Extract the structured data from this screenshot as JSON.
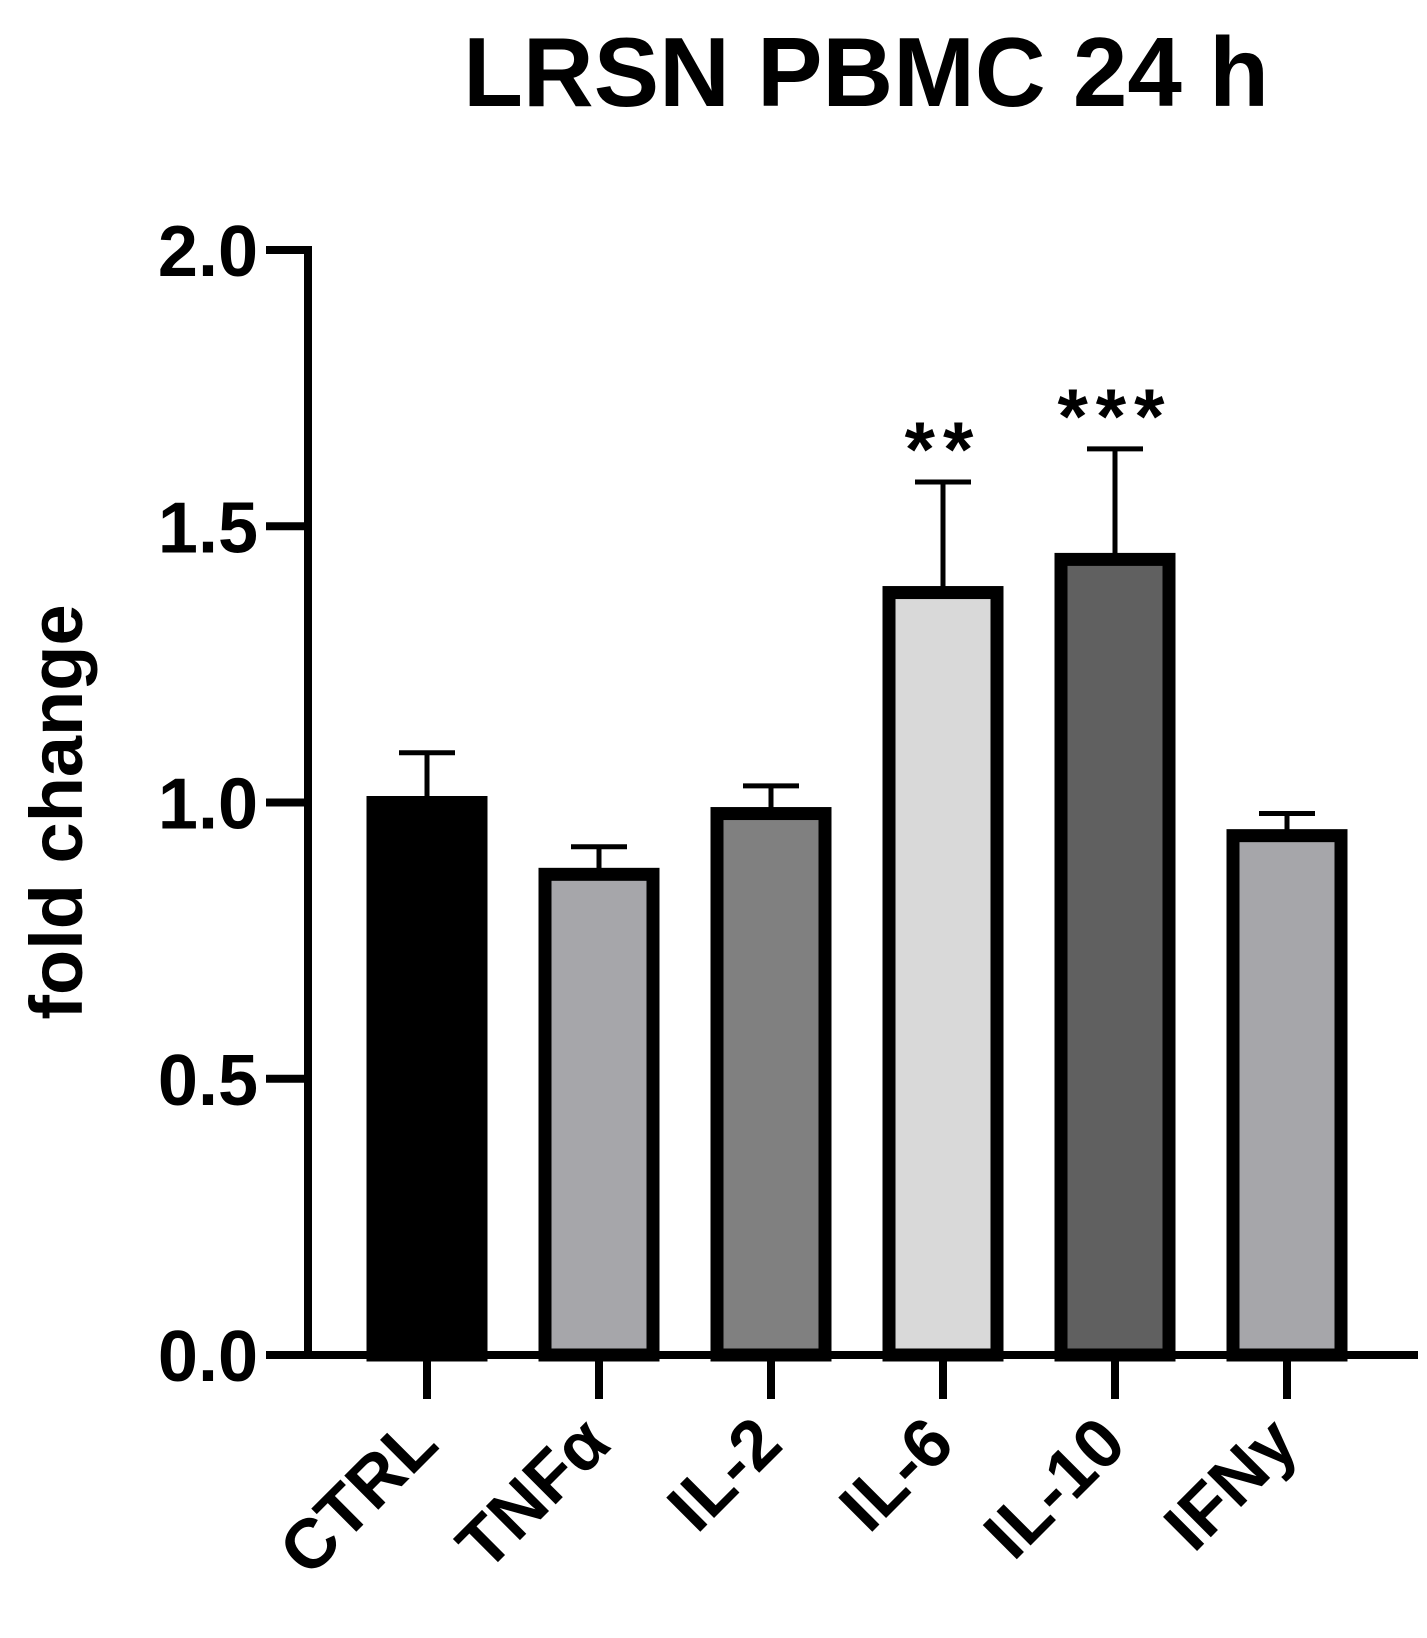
{
  "chart_data": {
    "type": "bar",
    "title": "LRSN PBMC 24 h",
    "xlabel": "",
    "ylabel": "fold change",
    "ylim": [
      0,
      2.0
    ],
    "yticks": [
      "0.0",
      "0.5",
      "1.0",
      "1.5",
      "2.0"
    ],
    "categories": [
      "CTRL",
      "TNFα",
      "IL-2",
      "IL-6",
      "IL-10",
      "IFNy"
    ],
    "values": [
      1.0,
      0.87,
      0.98,
      1.38,
      1.44,
      0.94
    ],
    "error": [
      0.09,
      0.05,
      0.05,
      0.2,
      0.2,
      0.04
    ],
    "significance": [
      "",
      "",
      "",
      "**",
      "***",
      ""
    ],
    "bar_colors": [
      "#000000",
      "#a6a6aa",
      "#808080",
      "#d9d9d9",
      "#606060",
      "#a6a6aa"
    ],
    "grid": false,
    "legend": "none"
  }
}
